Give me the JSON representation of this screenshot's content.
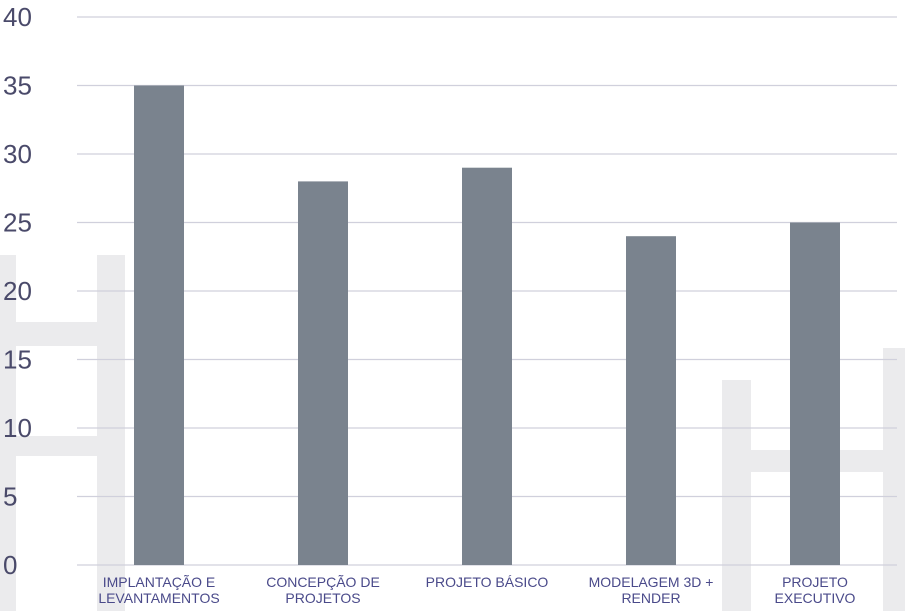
{
  "chart_data": {
    "type": "bar",
    "categories": [
      [
        "IMPLANTAÇÃO E",
        "LEVANTAMENTOS"
      ],
      [
        "CONCEPÇÃO DE",
        "PROJETOS"
      ],
      [
        "PROJETO BÁSICO"
      ],
      [
        "MODELAGEM 3D +",
        "RENDER"
      ],
      [
        "PROJETO",
        "EXECUTIVO"
      ]
    ],
    "values": [
      35,
      28,
      29,
      24,
      25
    ],
    "yticks": [
      "0",
      "5",
      "10",
      "15",
      "20",
      "25",
      "30",
      "35",
      "40"
    ],
    "ylim": [
      0,
      40
    ],
    "grid": true,
    "title": "",
    "xlabel": "",
    "ylabel": "",
    "colors": {
      "bar": "#7a838e",
      "grid": "#d0d0dc",
      "watermark": "#ebebed",
      "tick_text": "#4a4a6a",
      "category_text": "#4a4a8a"
    }
  }
}
